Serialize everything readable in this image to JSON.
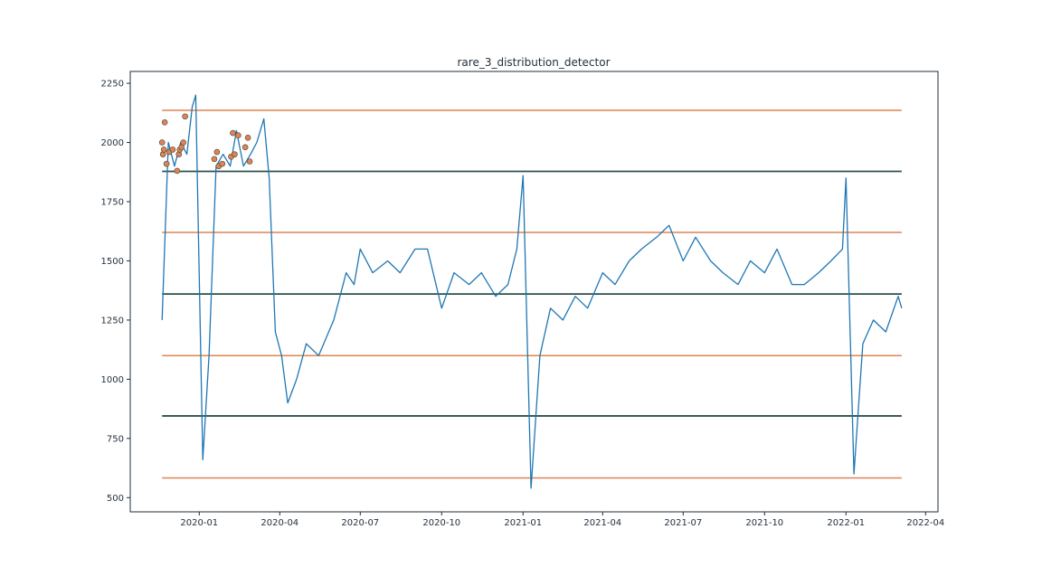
{
  "chart_data": {
    "type": "line",
    "title": "rare_3_distribution_detector",
    "xlabel": "",
    "ylabel": "",
    "x_range": [
      "2019-10-15",
      "2022-04-15"
    ],
    "ylim": [
      440,
      2300
    ],
    "x_ticks": [
      "2020-01",
      "2020-04",
      "2020-07",
      "2020-10",
      "2021-01",
      "2021-04",
      "2021-07",
      "2021-10",
      "2022-01",
      "2022-04"
    ],
    "y_ticks": [
      "500",
      "750",
      "1000",
      "1250",
      "1500",
      "1750",
      "2000",
      "2250"
    ],
    "grid": false,
    "legend": "none",
    "colors": {
      "series": "#1f77b4",
      "outer_band": "#dd8452",
      "inner_band": "#2f4f4f",
      "anomaly": "#dd8452"
    },
    "series": [
      {
        "x": [
          "2019-11-20",
          "2019-11-27",
          "2019-12-04",
          "2019-12-11",
          "2019-12-18",
          "2019-12-24",
          "2019-12-28",
          "2020-01-05",
          "2020-01-12",
          "2020-01-20",
          "2020-01-28",
          "2020-02-05",
          "2020-02-12",
          "2020-02-20",
          "2020-02-28",
          "2020-03-06",
          "2020-03-14",
          "2020-03-20",
          "2020-03-27",
          "2020-04-03",
          "2020-04-10",
          "2020-04-20",
          "2020-05-01",
          "2020-05-15",
          "2020-06-01",
          "2020-06-15",
          "2020-06-24",
          "2020-07-01",
          "2020-07-15",
          "2020-08-01",
          "2020-08-15",
          "2020-09-01",
          "2020-09-15",
          "2020-10-01",
          "2020-10-15",
          "2020-11-01",
          "2020-11-15",
          "2020-12-01",
          "2020-12-15",
          "2020-12-25",
          "2021-01-01",
          "2021-01-10",
          "2021-01-20",
          "2021-02-01",
          "2021-02-15",
          "2021-03-01",
          "2021-03-15",
          "2021-04-01",
          "2021-04-15",
          "2021-05-01",
          "2021-05-15",
          "2021-06-01",
          "2021-06-15",
          "2021-07-01",
          "2021-07-15",
          "2021-08-01",
          "2021-08-15",
          "2021-09-01",
          "2021-09-15",
          "2021-10-01",
          "2021-10-15",
          "2021-11-01",
          "2021-11-15",
          "2021-12-01",
          "2021-12-15",
          "2021-12-28",
          "2022-01-01",
          "2022-01-10",
          "2022-01-20",
          "2022-02-01",
          "2022-02-15",
          "2022-03-01",
          "2022-03-05"
        ],
        "values": [
          1250,
          2000,
          1900,
          2000,
          1950,
          2150,
          2200,
          660,
          1100,
          1900,
          1950,
          1900,
          2050,
          1900,
          1950,
          2000,
          2100,
          1850,
          1200,
          1100,
          900,
          1000,
          1150,
          1100,
          1250,
          1450,
          1400,
          1550,
          1450,
          1500,
          1450,
          1550,
          1550,
          1300,
          1450,
          1400,
          1450,
          1350,
          1400,
          1550,
          1860,
          540,
          1100,
          1300,
          1250,
          1350,
          1300,
          1450,
          1400,
          1500,
          1550,
          1600,
          1650,
          1500,
          1600,
          1500,
          1450,
          1400,
          1500,
          1450,
          1550,
          1400,
          1400,
          1450,
          1500,
          1550,
          1850,
          600,
          1150,
          1250,
          1200,
          1350,
          1300
        ]
      }
    ],
    "bands": {
      "inner": [
        845,
        1360,
        1878
      ],
      "outer": [
        583,
        1100,
        1620,
        2136
      ]
    },
    "anomalies": {
      "x": [
        "2019-11-20",
        "2019-11-21",
        "2019-11-22",
        "2019-11-23",
        "2019-11-25",
        "2019-11-28",
        "2019-12-02",
        "2019-12-07",
        "2019-12-09",
        "2019-12-10",
        "2019-12-12",
        "2019-12-14",
        "2019-12-16",
        "2020-01-18",
        "2020-01-21",
        "2020-01-23",
        "2020-01-27",
        "2020-02-06",
        "2020-02-08",
        "2020-02-10",
        "2020-02-14",
        "2020-02-22",
        "2020-02-25",
        "2020-02-27"
      ],
      "values": [
        2000,
        1950,
        1970,
        2085,
        1910,
        1960,
        1970,
        1880,
        1950,
        1970,
        1980,
        2000,
        2110,
        1930,
        1960,
        1900,
        1910,
        1940,
        2040,
        1950,
        2030,
        1980,
        2020,
        1920
      ]
    }
  }
}
